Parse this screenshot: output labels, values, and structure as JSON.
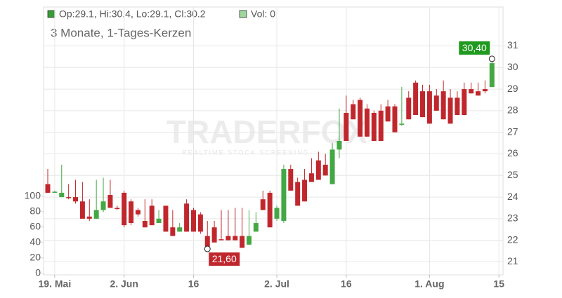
{
  "chart_data": {
    "type": "candlestick",
    "subtitle": "3 Monate, 1-Tages-Kerzen",
    "legend": [
      {
        "label": "Op:29.1, Hi:30.4, Lo:29.1, Cl:30.2",
        "color": "#3a9a3a"
      },
      {
        "label": "Vol: 0",
        "color": "#9ed69e"
      }
    ],
    "watermark": {
      "title": "TRADERFOX",
      "subtitle": "REALTIME STOCK SCREENING"
    },
    "up_color": "#43a843",
    "down_color": "#c0272d",
    "categories": [
      null,
      "19. Mai",
      null,
      null,
      null,
      null,
      null,
      null,
      null,
      null,
      null,
      "2. Jun",
      null,
      null,
      null,
      null,
      null,
      null,
      null,
      null,
      null,
      "16",
      null,
      null,
      null,
      null,
      null,
      null,
      null,
      null,
      null,
      null,
      null,
      "2. Jul",
      null,
      null,
      null,
      null,
      null,
      null,
      null,
      null,
      null,
      "16",
      null,
      null,
      null,
      null,
      null,
      null,
      null,
      null,
      null,
      null,
      null,
      "1. Aug",
      null,
      null,
      null,
      null,
      null,
      null,
      null,
      null,
      null,
      "15"
    ],
    "open": [
      24.6,
      24.2,
      24.0,
      24.0,
      24.0,
      23.8,
      23.1,
      23.0,
      23.4,
      24.1,
      23.5,
      24.2,
      23.8,
      23.4,
      22.9,
      23.6,
      22.8,
      23.6,
      22.6,
      22.4,
      23.7,
      23.4,
      23.2,
      22.2,
      22.6,
      22.05,
      22.2,
      22.2,
      22.2,
      21.8,
      22.4,
      23.9,
      24.2,
      23.0,
      22.9,
      25.3,
      24.7,
      24.8,
      25.1,
      25.7,
      25.5,
      24.6,
      26.2,
      27.9,
      28.3,
      28.5,
      28.1,
      27.9,
      28.0,
      28.2,
      28.2,
      27.35,
      28.6,
      29.3,
      28.9,
      28.9,
      28.7,
      28.9,
      28.6,
      28.6,
      29.0,
      29.0,
      28.9,
      29.0,
      29.1,
      null
    ],
    "high": [
      25.3,
      24.3,
      25.5,
      24.6,
      24.8,
      24.7,
      23.9,
      24.8,
      24.9,
      24.8,
      23.6,
      24.3,
      23.9,
      23.5,
      23.9,
      23.9,
      23.4,
      23.6,
      23.4,
      22.8,
      23.9,
      23.5,
      23.3,
      22.9,
      22.9,
      23.4,
      23.4,
      23.5,
      23.5,
      23.4,
      23.3,
      24.3,
      24.3,
      23.6,
      25.5,
      25.5,
      24.9,
      25.3,
      25.8,
      26.1,
      26.0,
      26.5,
      28.1,
      28.7,
      28.5,
      28.6,
      28.3,
      28.0,
      28.3,
      28.5,
      28.3,
      29.1,
      28.9,
      29.4,
      29.2,
      29.2,
      29.0,
      29.4,
      29.0,
      28.9,
      29.3,
      29.3,
      29.3,
      29.4,
      30.4,
      null
    ],
    "low": [
      24.2,
      24.2,
      24.0,
      23.9,
      23.7,
      23.0,
      22.9,
      23.0,
      23.3,
      23.5,
      23.4,
      22.6,
      22.7,
      23.1,
      22.6,
      22.7,
      22.8,
      22.4,
      22.2,
      22.4,
      22.4,
      22.4,
      22.3,
      21.6,
      21.9,
      22.0,
      22.0,
      22.0,
      21.65,
      21.8,
      22.4,
      23.4,
      22.6,
      22.9,
      22.8,
      24.3,
      23.6,
      23.8,
      24.7,
      24.8,
      25.0,
      24.6,
      25.8,
      26.6,
      27.6,
      26.8,
      26.8,
      26.6,
      26.6,
      27.5,
      27.0,
      27.3,
      27.6,
      27.8,
      27.7,
      27.4,
      28.0,
      27.6,
      27.4,
      27.8,
      27.8,
      28.8,
      28.7,
      28.8,
      29.1,
      null
    ],
    "close": [
      24.2,
      24.25,
      24.2,
      23.95,
      23.8,
      23.0,
      23.0,
      23.4,
      23.8,
      23.5,
      23.45,
      22.7,
      22.8,
      23.2,
      22.6,
      22.7,
      23.0,
      22.4,
      22.2,
      22.6,
      22.4,
      22.4,
      22.4,
      21.7,
      21.9,
      22.0,
      22.0,
      22.0,
      21.65,
      22.2,
      22.8,
      23.4,
      22.6,
      23.5,
      25.3,
      24.3,
      23.6,
      23.8,
      24.7,
      24.8,
      25.0,
      26.2,
      26.6,
      26.6,
      27.6,
      26.8,
      26.8,
      26.6,
      26.6,
      27.5,
      27.0,
      27.4,
      27.6,
      27.8,
      27.7,
      27.4,
      28.0,
      27.6,
      27.4,
      27.8,
      27.8,
      28.8,
      28.7,
      28.9,
      30.2,
      null
    ],
    "ylim": [
      20.4,
      32.8
    ],
    "yticks": [
      21,
      22,
      23,
      24,
      25,
      26,
      27,
      28,
      29,
      30,
      31
    ],
    "y2lim": [
      -2,
      345
    ],
    "y2ticks": [
      0,
      20,
      40,
      60,
      80,
      100
    ],
    "annotations": [
      {
        "label": "30,40",
        "value": 30.4,
        "kind": "high",
        "color": "#1f9a1f"
      },
      {
        "label": "21,60",
        "value": 21.6,
        "kind": "low",
        "color": "#c0272d"
      }
    ],
    "grid": true
  }
}
